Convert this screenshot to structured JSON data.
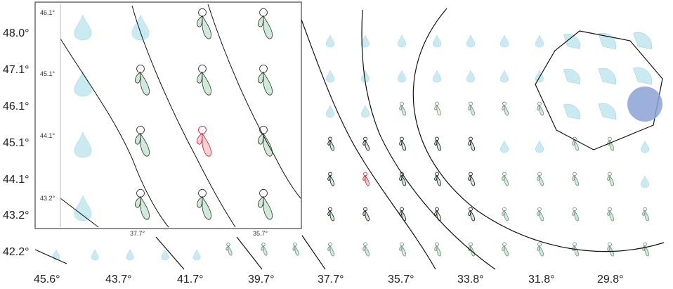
{
  "map": {
    "y_ticks": [
      "48.0°",
      "47.1°",
      "46.1°",
      "45.1°",
      "44.1°",
      "43.2°",
      "42.2°"
    ],
    "x_ticks": [
      "45.6°",
      "43.7°",
      "41.7°",
      "39.7°",
      "37.7°",
      "35.7°",
      "33.8°",
      "31.8°",
      "29.8°"
    ]
  },
  "inset": {
    "y_ticks": [
      "46.1°",
      "45.1°",
      "44.1°",
      "43.2°"
    ],
    "x_ticks": [
      "37.7°",
      "35.7°"
    ]
  },
  "colors": {
    "blue_fill": "#bfe6ef",
    "green_fill": "#cdebd6",
    "yellow_fill": "#f3f6dc",
    "highlight_circle": "#8aa2d4",
    "selected_red": "#d02030",
    "line_black": "#111111"
  }
}
